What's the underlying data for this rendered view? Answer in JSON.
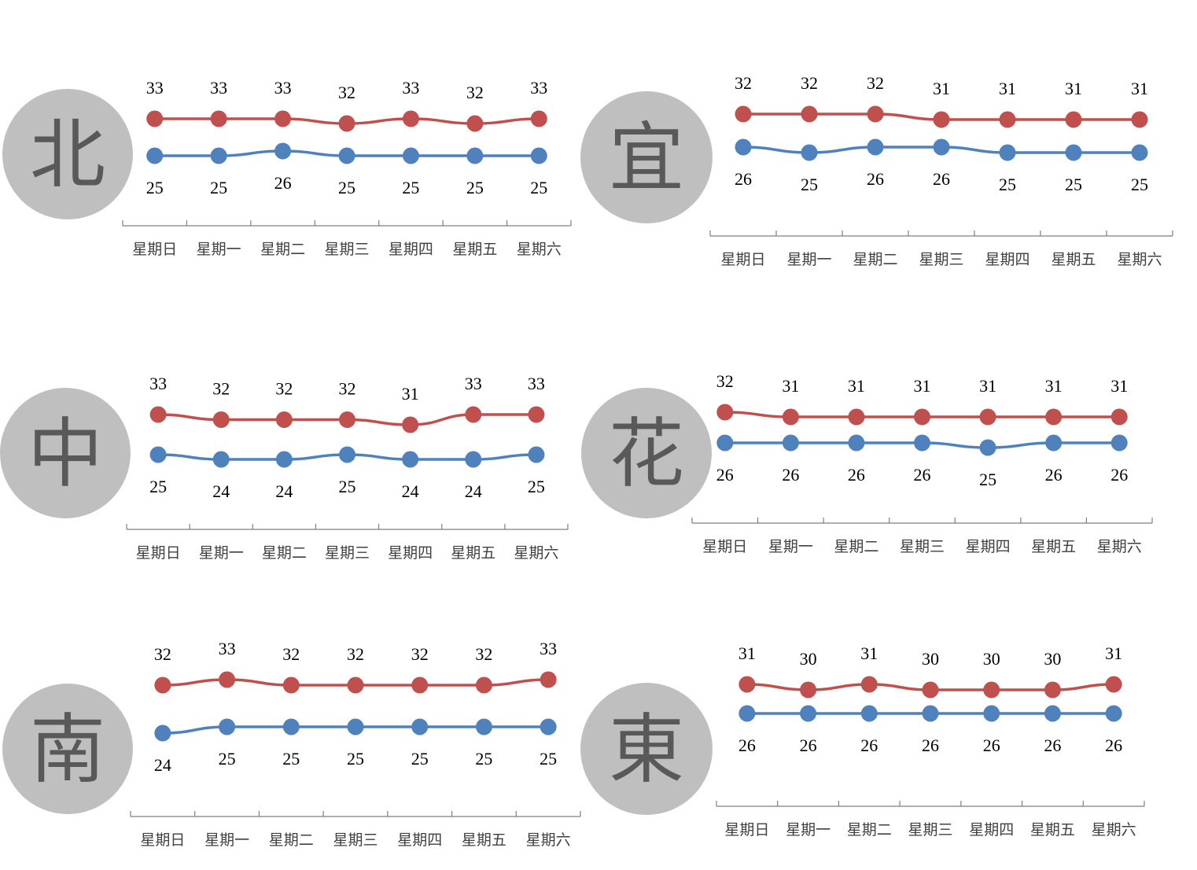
{
  "chart_data": [
    {
      "type": "line",
      "region_label": "北",
      "categories": [
        "星期日",
        "星期一",
        "星期二",
        "星期三",
        "星期四",
        "星期五",
        "星期六"
      ],
      "series": [
        {
          "color": "#c0504d",
          "values": [
            33,
            33,
            33,
            32,
            33,
            32,
            33
          ]
        },
        {
          "color": "#4f81bd",
          "values": [
            25,
            25,
            26,
            25,
            25,
            25,
            25
          ]
        }
      ]
    },
    {
      "type": "line",
      "region_label": "宜",
      "categories": [
        "星期日",
        "星期一",
        "星期二",
        "星期三",
        "星期四",
        "星期五",
        "星期六"
      ],
      "series": [
        {
          "color": "#c0504d",
          "values": [
            32,
            32,
            32,
            31,
            31,
            31,
            31
          ]
        },
        {
          "color": "#4f81bd",
          "values": [
            26,
            25,
            26,
            26,
            25,
            25,
            25
          ]
        }
      ]
    },
    {
      "type": "line",
      "region_label": "中",
      "categories": [
        "星期日",
        "星期一",
        "星期二",
        "星期三",
        "星期四",
        "星期五",
        "星期六"
      ],
      "series": [
        {
          "color": "#c0504d",
          "values": [
            33,
            32,
            32,
            32,
            31,
            33,
            33
          ]
        },
        {
          "color": "#4f81bd",
          "values": [
            25,
            24,
            24,
            25,
            24,
            24,
            25
          ]
        }
      ]
    },
    {
      "type": "line",
      "region_label": "花",
      "categories": [
        "星期日",
        "星期一",
        "星期二",
        "星期三",
        "星期四",
        "星期五",
        "星期六"
      ],
      "series": [
        {
          "color": "#c0504d",
          "values": [
            32,
            31,
            31,
            31,
            31,
            31,
            31
          ]
        },
        {
          "color": "#4f81bd",
          "values": [
            26,
            26,
            26,
            26,
            25,
            26,
            26
          ]
        }
      ]
    },
    {
      "type": "line",
      "region_label": "南",
      "categories": [
        "星期日",
        "星期一",
        "星期二",
        "星期三",
        "星期四",
        "星期五",
        "星期六"
      ],
      "series": [
        {
          "color": "#c0504d",
          "values": [
            32,
            33,
            32,
            32,
            32,
            32,
            33
          ]
        },
        {
          "color": "#4f81bd",
          "values": [
            24,
            25,
            25,
            25,
            25,
            25,
            25
          ]
        }
      ]
    },
    {
      "type": "line",
      "region_label": "東",
      "categories": [
        "星期日",
        "星期一",
        "星期二",
        "星期三",
        "星期四",
        "星期五",
        "星期六"
      ],
      "series": [
        {
          "color": "#c0504d",
          "values": [
            31,
            30,
            31,
            30,
            30,
            30,
            31
          ]
        },
        {
          "color": "#4f81bd",
          "values": [
            26,
            26,
            26,
            26,
            26,
            26,
            26
          ]
        }
      ]
    }
  ]
}
